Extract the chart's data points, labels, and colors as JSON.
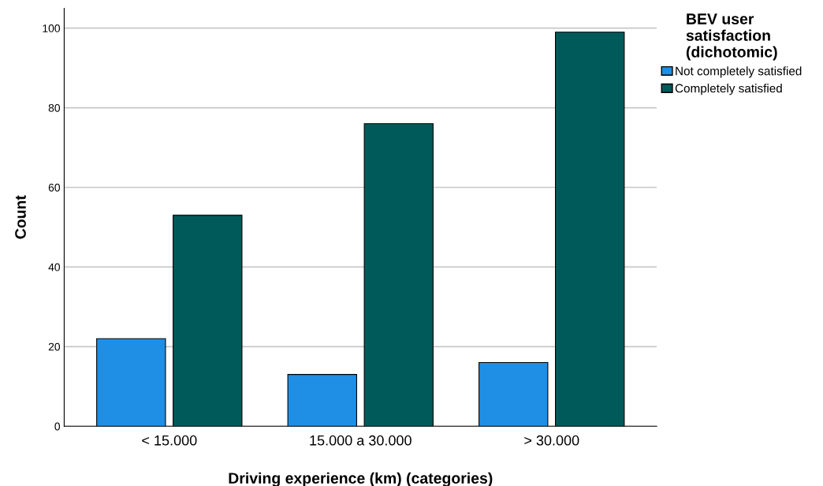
{
  "chart_data": {
    "type": "bar",
    "xlabel": "Driving experience (km) (categories)",
    "ylabel": "Count",
    "legend_title": "BEV user\nsatisfaction\n(dichotomic)",
    "categories": [
      "< 15.000",
      "15.000 a 30.000",
      "> 30.000"
    ],
    "series": [
      {
        "name": "Not completely satisfied",
        "color": "#1f8fe6",
        "values": [
          22,
          13,
          16
        ]
      },
      {
        "name": "Completely satisfied",
        "color": "#005a5a",
        "values": [
          53,
          76,
          99
        ]
      }
    ],
    "ylim": [
      0,
      105
    ],
    "yticks": [
      0,
      20,
      40,
      60,
      80,
      100
    ],
    "grid": "y",
    "legend": "top right"
  }
}
